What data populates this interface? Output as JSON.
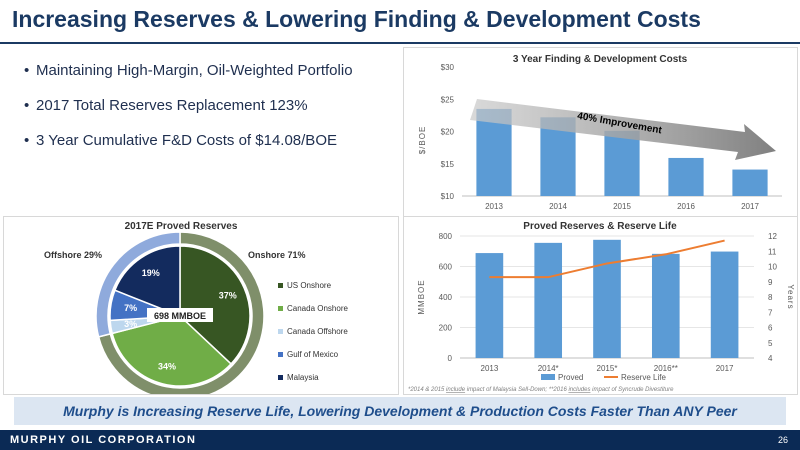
{
  "slide": {
    "title": "Increasing Reserves & Lowering Finding & Development Costs",
    "bullets": [
      "Maintaining High-Margin, Oil-Weighted Portfolio",
      "2017 Total Reserves Replacement 123%",
      "3 Year Cumulative F&D Costs of $14.08/BOE"
    ],
    "banner": "Murphy is Increasing Reserve Life, Lowering Development & Production Costs Faster Than ANY Peer",
    "footer_company": "MURPHY OIL CORPORATION",
    "page_number": "26"
  },
  "colors": {
    "navy": "#1b3a63",
    "bar_blue": "#5b9bd5",
    "line_orange": "#ed7d31",
    "banner_bg": "#dce6f2"
  },
  "chart_data": [
    {
      "type": "bar",
      "title": "3 Year Finding & Development Costs",
      "ylabel": "$/BOE",
      "categories": [
        "2013",
        "2014",
        "2015",
        "2016",
        "2017"
      ],
      "values": [
        23.5,
        22.2,
        20.1,
        15.9,
        14.1
      ],
      "ylim": [
        10,
        30
      ],
      "yticks": [
        "$10",
        "$15",
        "$20",
        "$25",
        "$30"
      ],
      "annotation": "40% Improvement",
      "grid": false
    },
    {
      "type": "pie",
      "title": "2017E Proved Reserves",
      "center_label": "698 MMBOE",
      "slices": [
        {
          "name": "US Onshore",
          "value": 37,
          "label": "37%",
          "color": "#375623"
        },
        {
          "name": "Canada Onshore",
          "value": 34,
          "label": "34%",
          "color": "#70ad47"
        },
        {
          "name": "Canada Offshore",
          "value": 3,
          "label": "3%",
          "color": "#bdd7ee"
        },
        {
          "name": "Gulf of Mexico",
          "value": 7,
          "label": "7%",
          "color": "#4472c4"
        },
        {
          "name": "Malaysia",
          "value": 19,
          "label": "19%",
          "color": "#132b5e"
        }
      ],
      "outer_ring": [
        {
          "name": "Onshore 71%",
          "value": 71,
          "color": "#7f8f6a"
        },
        {
          "name": "Offshore 29%",
          "value": 29,
          "color": "#8faadc"
        }
      ],
      "legend_position": "right"
    },
    {
      "type": "bar",
      "title": "Proved Reserves & Reserve Life",
      "ylabel": "MMBOE",
      "y2label": "Years",
      "categories": [
        "2013",
        "2014*",
        "2015*",
        "2016**",
        "2017"
      ],
      "series": [
        {
          "name": "Proved",
          "type": "bar",
          "values": [
            688,
            755,
            775,
            683,
            698
          ]
        },
        {
          "name": "Reserve Life",
          "type": "line",
          "values": [
            9.3,
            9.3,
            10.2,
            10.8,
            11.7
          ]
        }
      ],
      "ylim": [
        0,
        800
      ],
      "yticks": [
        "0",
        "200",
        "400",
        "600",
        "800"
      ],
      "y2lim": [
        4,
        12
      ],
      "y2ticks": [
        "4",
        "5",
        "6",
        "7",
        "8",
        "9",
        "10",
        "11",
        "12"
      ],
      "legend_position": "bottom",
      "footnote_parts": [
        "*2014 & 2015 ",
        "include",
        " impact of Malaysia Sell-Down; **2016 ",
        "includes",
        " impact of Syncrude Divestiture"
      ]
    }
  ]
}
